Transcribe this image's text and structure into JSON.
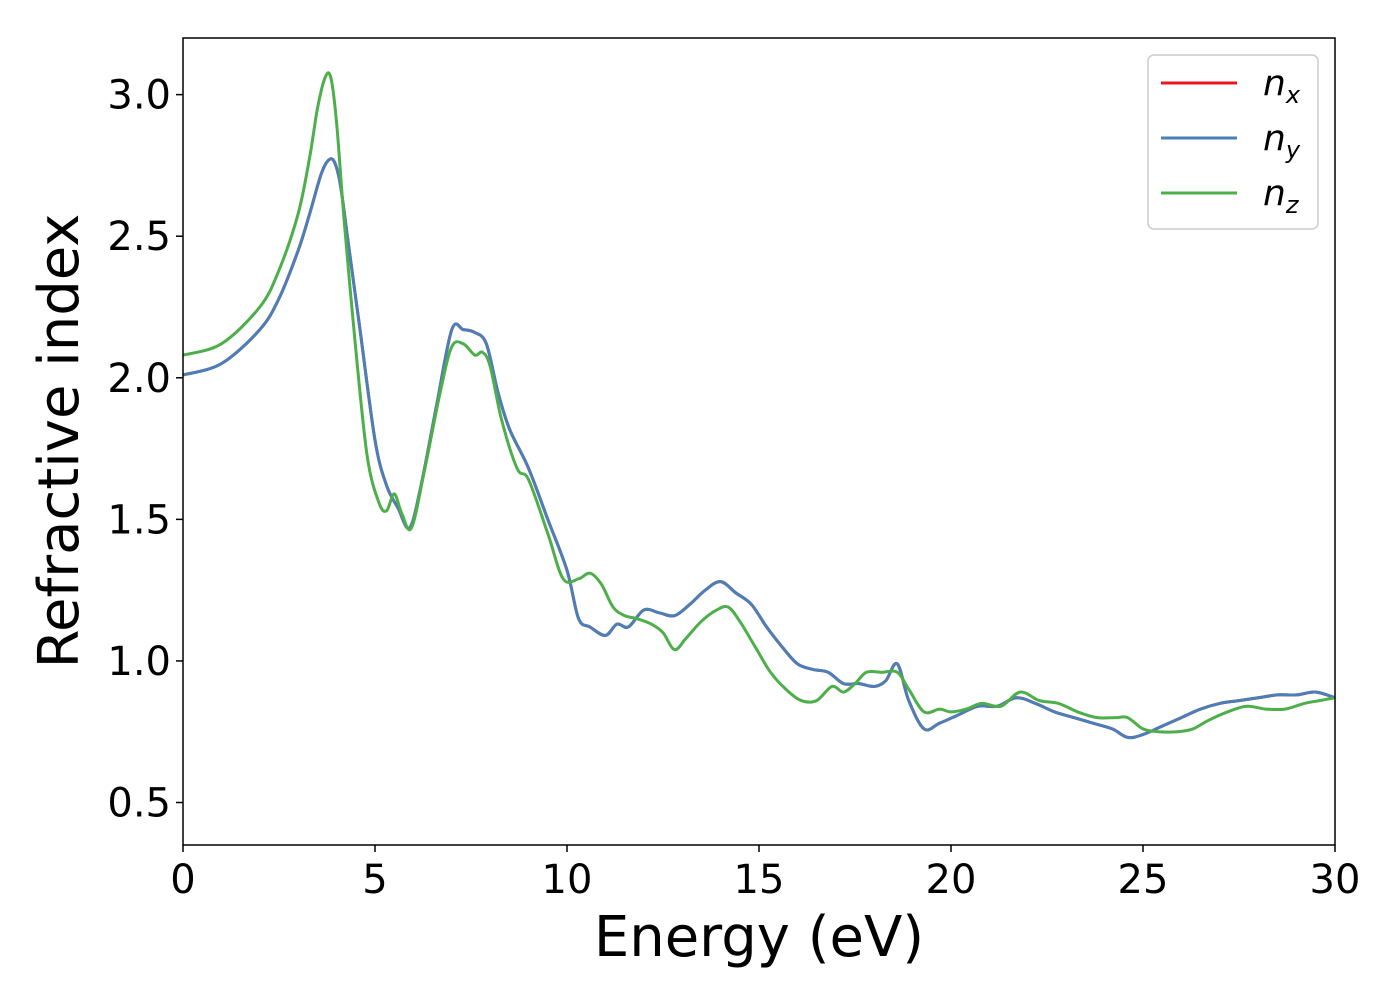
{
  "chart_data": {
    "type": "line",
    "title": "",
    "xlabel": "Energy (eV)",
    "ylabel": "Refractive index",
    "xlim": [
      0,
      30
    ],
    "ylim": [
      0.35,
      3.2
    ],
    "xticks": [
      0,
      5,
      10,
      15,
      20,
      25,
      30
    ],
    "xtick_labels": [
      "0",
      "5",
      "10",
      "15",
      "20",
      "25",
      "30"
    ],
    "yticks": [
      0.5,
      1.0,
      1.5,
      2.0,
      2.5,
      3.0
    ],
    "ytick_labels": [
      "0.5",
      "1.0",
      "1.5",
      "2.0",
      "2.5",
      "3.0"
    ],
    "grid": false,
    "legend_position": "top-right",
    "series": [
      {
        "name": "n_x",
        "legend_base": "n",
        "legend_sub": "x",
        "color": "#e41a1c",
        "x": [
          0,
          1,
          2,
          2.5,
          3,
          3.3,
          3.6,
          3.8,
          3.95,
          4.1,
          4.3,
          4.6,
          5.0,
          5.3,
          5.6,
          5.9,
          6.2,
          6.6,
          7.0,
          7.3,
          7.6,
          7.9,
          8.2,
          8.5,
          9.0,
          9.5,
          10.0,
          10.3,
          10.6,
          11.0,
          11.3,
          11.6,
          12.0,
          12.4,
          12.8,
          13.2,
          13.6,
          14.0,
          14.4,
          14.8,
          15.2,
          15.6,
          16.0,
          16.4,
          16.8,
          17.2,
          17.6,
          18.0,
          18.3,
          18.6,
          18.9,
          19.3,
          19.7,
          20.2,
          20.7,
          21.2,
          21.7,
          22.2,
          22.7,
          23.2,
          23.7,
          24.2,
          24.6,
          25.0,
          25.5,
          26.0,
          26.5,
          27.0,
          27.5,
          28.0,
          28.5,
          29.0,
          29.5,
          30.0
        ],
        "y": [
          2.01,
          2.05,
          2.17,
          2.28,
          2.45,
          2.58,
          2.72,
          2.77,
          2.76,
          2.68,
          2.48,
          2.18,
          1.78,
          1.62,
          1.54,
          1.47,
          1.62,
          1.9,
          2.17,
          2.17,
          2.16,
          2.12,
          1.95,
          1.82,
          1.68,
          1.5,
          1.32,
          1.15,
          1.12,
          1.09,
          1.13,
          1.12,
          1.18,
          1.17,
          1.16,
          1.2,
          1.25,
          1.28,
          1.24,
          1.2,
          1.12,
          1.05,
          0.99,
          0.97,
          0.96,
          0.92,
          0.92,
          0.91,
          0.93,
          0.99,
          0.86,
          0.76,
          0.78,
          0.81,
          0.84,
          0.84,
          0.87,
          0.85,
          0.82,
          0.8,
          0.78,
          0.76,
          0.73,
          0.74,
          0.77,
          0.8,
          0.83,
          0.85,
          0.86,
          0.87,
          0.88,
          0.88,
          0.89,
          0.87
        ]
      },
      {
        "name": "n_y",
        "legend_base": "n",
        "legend_sub": "y",
        "color": "#4a7fb8",
        "x": [
          0,
          1,
          2,
          2.5,
          3,
          3.3,
          3.6,
          3.8,
          3.95,
          4.1,
          4.3,
          4.6,
          5.0,
          5.3,
          5.6,
          5.9,
          6.2,
          6.6,
          7.0,
          7.3,
          7.6,
          7.9,
          8.2,
          8.5,
          9.0,
          9.5,
          10.0,
          10.3,
          10.6,
          11.0,
          11.3,
          11.6,
          12.0,
          12.4,
          12.8,
          13.2,
          13.6,
          14.0,
          14.4,
          14.8,
          15.2,
          15.6,
          16.0,
          16.4,
          16.8,
          17.2,
          17.6,
          18.0,
          18.3,
          18.6,
          18.9,
          19.3,
          19.7,
          20.2,
          20.7,
          21.2,
          21.7,
          22.2,
          22.7,
          23.2,
          23.7,
          24.2,
          24.6,
          25.0,
          25.5,
          26.0,
          26.5,
          27.0,
          27.5,
          28.0,
          28.5,
          29.0,
          29.5,
          30.0
        ],
        "y": [
          2.01,
          2.05,
          2.17,
          2.28,
          2.45,
          2.58,
          2.72,
          2.77,
          2.76,
          2.68,
          2.48,
          2.18,
          1.78,
          1.62,
          1.54,
          1.47,
          1.62,
          1.9,
          2.17,
          2.17,
          2.16,
          2.12,
          1.95,
          1.82,
          1.68,
          1.5,
          1.32,
          1.15,
          1.12,
          1.09,
          1.13,
          1.12,
          1.18,
          1.17,
          1.16,
          1.2,
          1.25,
          1.28,
          1.24,
          1.2,
          1.12,
          1.05,
          0.99,
          0.97,
          0.96,
          0.92,
          0.92,
          0.91,
          0.93,
          0.99,
          0.86,
          0.76,
          0.78,
          0.81,
          0.84,
          0.84,
          0.87,
          0.85,
          0.82,
          0.8,
          0.78,
          0.76,
          0.73,
          0.74,
          0.77,
          0.8,
          0.83,
          0.85,
          0.86,
          0.87,
          0.88,
          0.88,
          0.89,
          0.87
        ]
      },
      {
        "name": "n_z",
        "legend_base": "n",
        "legend_sub": "z",
        "color": "#4daf4a",
        "x": [
          0,
          1,
          2,
          2.5,
          3,
          3.3,
          3.5,
          3.7,
          3.85,
          4.0,
          4.2,
          4.5,
          4.8,
          5.1,
          5.3,
          5.5,
          5.7,
          5.95,
          6.3,
          6.7,
          7.0,
          7.3,
          7.6,
          7.8,
          8.0,
          8.3,
          8.7,
          9.0,
          9.5,
          9.9,
          10.3,
          10.6,
          10.9,
          11.2,
          11.5,
          11.8,
          12.2,
          12.5,
          12.8,
          13.1,
          13.5,
          13.9,
          14.2,
          14.5,
          14.9,
          15.3,
          15.7,
          16.1,
          16.5,
          16.9,
          17.2,
          17.5,
          17.8,
          18.2,
          18.6,
          18.9,
          19.3,
          19.7,
          20.0,
          20.4,
          20.8,
          21.3,
          21.8,
          22.3,
          22.8,
          23.3,
          23.8,
          24.3,
          24.6,
          25.0,
          25.4,
          25.9,
          26.3,
          26.7,
          27.2,
          27.7,
          28.2,
          28.7,
          29.2,
          29.6,
          30.0
        ],
        "y": [
          2.08,
          2.12,
          2.25,
          2.38,
          2.58,
          2.78,
          2.95,
          3.06,
          3.06,
          2.9,
          2.55,
          2.1,
          1.72,
          1.56,
          1.53,
          1.59,
          1.52,
          1.47,
          1.68,
          1.95,
          2.11,
          2.12,
          2.08,
          2.09,
          2.04,
          1.85,
          1.68,
          1.64,
          1.45,
          1.29,
          1.29,
          1.31,
          1.27,
          1.19,
          1.16,
          1.15,
          1.13,
          1.1,
          1.04,
          1.08,
          1.14,
          1.18,
          1.19,
          1.14,
          1.05,
          0.96,
          0.9,
          0.86,
          0.86,
          0.91,
          0.89,
          0.92,
          0.96,
          0.96,
          0.96,
          0.9,
          0.82,
          0.83,
          0.82,
          0.83,
          0.85,
          0.84,
          0.89,
          0.86,
          0.85,
          0.82,
          0.8,
          0.8,
          0.8,
          0.76,
          0.75,
          0.75,
          0.76,
          0.79,
          0.82,
          0.84,
          0.83,
          0.83,
          0.85,
          0.86,
          0.87
        ]
      }
    ]
  }
}
